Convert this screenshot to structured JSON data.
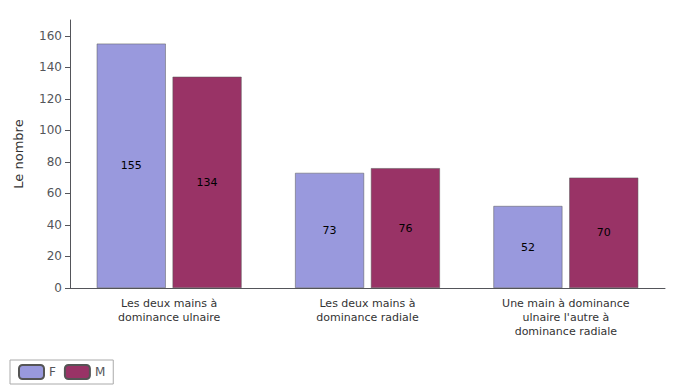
{
  "chart_data": {
    "type": "bar",
    "categories": [
      "Les deux mains à\ndominance ulnaire",
      "Les deux mains à\ndominance radiale",
      "Une main à dominance\nulnaire l'autre à\ndominance radiale"
    ],
    "series": [
      {
        "name": "F",
        "color": "#9999dd",
        "values": [
          155,
          73,
          52
        ]
      },
      {
        "name": "M",
        "color": "#993366",
        "values": [
          134,
          76,
          70
        ]
      }
    ],
    "ylabel": "Le nombre",
    "ylim": [
      0,
      170
    ],
    "yticks": [
      0,
      20,
      40,
      60,
      80,
      100,
      120,
      140,
      160
    ],
    "grid": false,
    "legend": "lower left",
    "data_labels": true
  }
}
